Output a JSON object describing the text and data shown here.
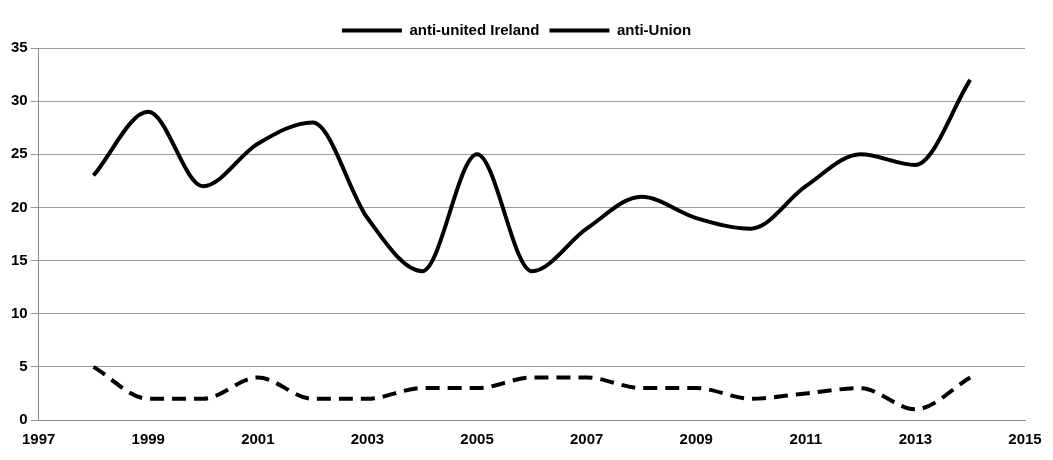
{
  "chart_data": {
    "type": "line",
    "x": [
      1998,
      1999,
      2000,
      2001,
      2002,
      2003,
      2004,
      2005,
      2006,
      2007,
      2008,
      2009,
      2010,
      2011,
      2012,
      2013,
      2014
    ],
    "series": [
      {
        "name": "anti-united Ireland",
        "color": "#000000",
        "line_style": "solid",
        "values": [
          23,
          29,
          22,
          26,
          28,
          19,
          14,
          25,
          14,
          18,
          21,
          19,
          18,
          22,
          25,
          24,
          32
        ]
      },
      {
        "name": "anti-Union",
        "color": "#000000",
        "line_style": "dashed",
        "values": [
          5,
          2,
          2,
          4,
          2,
          2,
          3,
          3,
          4,
          4,
          3,
          3,
          2,
          2.5,
          3,
          1,
          4
        ]
      }
    ],
    "xlim": [
      1997,
      2015
    ],
    "xticks": [
      1997,
      1999,
      2001,
      2003,
      2005,
      2007,
      2009,
      2011,
      2013,
      2015
    ],
    "ylim": [
      0,
      35
    ],
    "yticks": [
      0,
      5,
      10,
      15,
      20,
      25,
      30,
      35
    ],
    "grid": "y",
    "legend": "top"
  }
}
